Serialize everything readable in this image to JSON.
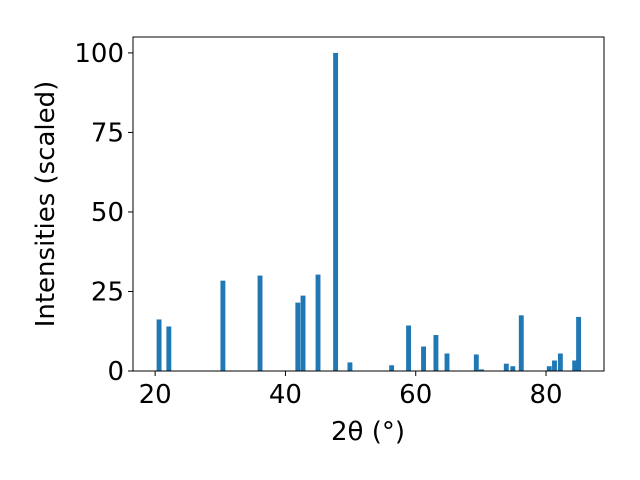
{
  "chart_data": {
    "type": "bar",
    "xlabel": "2θ (°)",
    "ylabel": "Intensities (scaled)",
    "x": [
      20.6,
      22.1,
      30.4,
      36.1,
      41.9,
      42.7,
      45.0,
      47.7,
      49.9,
      56.3,
      58.9,
      61.2,
      63.1,
      64.8,
      69.3,
      70.1,
      73.9,
      74.9,
      76.2,
      80.5,
      81.3,
      82.2,
      84.4,
      85.0
    ],
    "values": [
      16.2,
      14,
      28.4,
      30,
      21.5,
      23.7,
      30.3,
      100,
      2.7,
      1.8,
      14.3,
      7.7,
      11.3,
      5.5,
      5.2,
      0.5,
      2.3,
      1.5,
      17.5,
      1.5,
      3.3,
      5.5,
      3.3,
      17
    ],
    "color": "#1f77b4",
    "xlim": [
      16.6,
      88.9
    ],
    "xticks": [
      20,
      40,
      60,
      80
    ],
    "ylim": [
      0,
      105
    ],
    "yticks": [
      0,
      25,
      50,
      75,
      100
    ]
  }
}
